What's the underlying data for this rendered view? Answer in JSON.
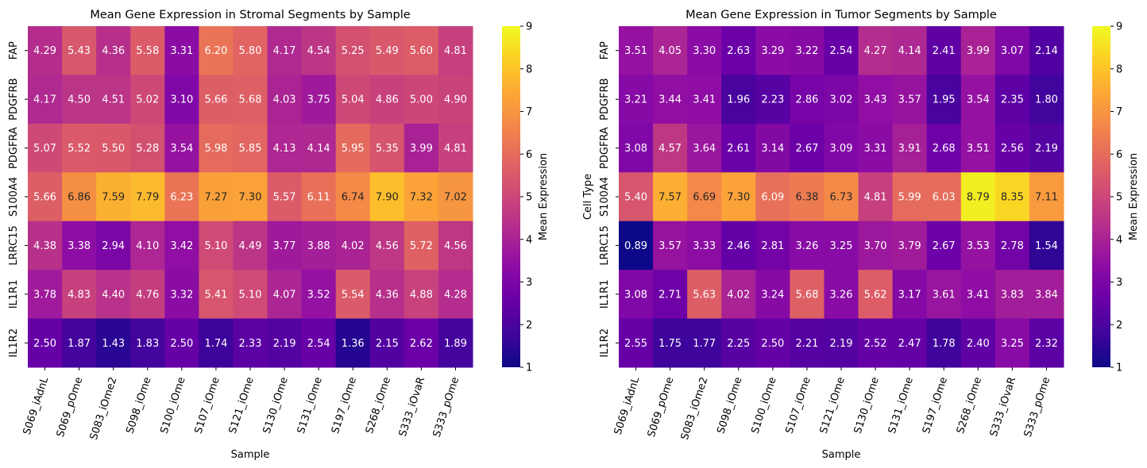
{
  "colormap": {
    "name": "plasma",
    "stops": [
      "#0d0887",
      "#41049d",
      "#6a00a8",
      "#8f0da4",
      "#b12a90",
      "#cc4778",
      "#e16462",
      "#f2844b",
      "#fca636",
      "#fcce25",
      "#f0f921"
    ]
  },
  "chart_data": [
    {
      "type": "heatmap",
      "title": "Mean Gene Expression in Stromal Segments by Sample",
      "xlabel": "Sample",
      "ylabel": "",
      "colorbar_label": "Mean Expression",
      "vmin": 1,
      "vmax": 9,
      "colorbar_ticks": [
        1,
        2,
        3,
        4,
        5,
        6,
        7,
        8,
        9
      ],
      "x": [
        "S069_iAdnL",
        "S069_pOme",
        "S083_iOme2",
        "S098_iOme",
        "S100_iOme",
        "S107_iOme",
        "S121_iOme",
        "S130_iOme",
        "S131_iOme",
        "S197_iOme",
        "S268_iOme",
        "S333_iOvaR",
        "S333_pOme"
      ],
      "y": [
        "FAP",
        "PDGFRB",
        "PDGFRA",
        "S100A4",
        "LRRC15",
        "IL1R1",
        "IL1R2"
      ],
      "values": [
        [
          4.29,
          5.43,
          4.36,
          5.58,
          3.31,
          6.2,
          5.8,
          4.17,
          4.54,
          5.25,
          5.49,
          5.6,
          4.81
        ],
        [
          4.17,
          4.5,
          4.51,
          5.02,
          3.1,
          5.66,
          5.68,
          4.03,
          3.75,
          5.04,
          4.86,
          5.0,
          4.9
        ],
        [
          5.07,
          5.52,
          5.5,
          5.28,
          3.54,
          5.98,
          5.85,
          4.13,
          4.14,
          5.95,
          5.35,
          3.99,
          4.81
        ],
        [
          5.66,
          6.86,
          7.59,
          7.79,
          6.23,
          7.27,
          7.3,
          5.57,
          6.11,
          6.74,
          7.9,
          7.32,
          7.02
        ],
        [
          4.38,
          3.38,
          2.94,
          4.1,
          3.42,
          5.1,
          4.49,
          3.77,
          3.88,
          4.02,
          4.56,
          5.72,
          4.56
        ],
        [
          3.78,
          4.83,
          4.4,
          4.76,
          3.32,
          5.41,
          5.1,
          4.07,
          3.52,
          5.54,
          4.36,
          4.88,
          4.28
        ],
        [
          2.5,
          1.87,
          1.43,
          1.83,
          2.5,
          1.74,
          2.33,
          2.19,
          2.54,
          1.36,
          2.15,
          2.62,
          1.89
        ]
      ]
    },
    {
      "type": "heatmap",
      "title": "Mean Gene Expression in Tumor Segments by Sample",
      "xlabel": "Sample",
      "ylabel": "Cell Type",
      "colorbar_label": "Mean Expression",
      "vmin": 1,
      "vmax": 9,
      "colorbar_ticks": [
        1,
        2,
        3,
        4,
        5,
        6,
        7,
        8,
        9
      ],
      "x": [
        "S069_iAdnL",
        "S069_pOme",
        "S083_iOme2",
        "S098_iOme",
        "S100_iOme",
        "S107_iOme",
        "S121_iOme",
        "S130_iOme",
        "S131_iOme",
        "S197_iOme",
        "S268_iOme",
        "S333_iOvaR",
        "S333_pOme"
      ],
      "y": [
        "FAP",
        "PDGFRB",
        "PDGFRA",
        "S100A4",
        "LRRC15",
        "IL1R1",
        "IL1R2"
      ],
      "values": [
        [
          3.51,
          4.05,
          3.3,
          2.63,
          3.29,
          3.22,
          2.54,
          4.27,
          4.14,
          2.41,
          3.99,
          3.07,
          2.14
        ],
        [
          3.21,
          3.44,
          3.41,
          1.96,
          2.23,
          2.86,
          3.02,
          3.43,
          3.57,
          1.95,
          3.54,
          2.35,
          1.8
        ],
        [
          3.08,
          4.57,
          3.64,
          2.61,
          3.14,
          2.67,
          3.09,
          3.31,
          3.91,
          2.68,
          3.51,
          2.56,
          2.19
        ],
        [
          5.4,
          7.57,
          6.69,
          7.3,
          6.09,
          6.38,
          6.73,
          4.81,
          5.99,
          6.03,
          8.79,
          8.35,
          7.11
        ],
        [
          0.89,
          3.57,
          3.33,
          2.46,
          2.81,
          3.26,
          3.25,
          3.7,
          3.79,
          2.67,
          3.53,
          2.78,
          1.54
        ],
        [
          3.08,
          2.71,
          5.63,
          4.02,
          3.24,
          5.68,
          3.26,
          5.62,
          3.17,
          3.61,
          3.41,
          3.83,
          3.84
        ],
        [
          2.55,
          1.75,
          1.77,
          2.25,
          2.5,
          2.21,
          2.19,
          2.52,
          2.47,
          1.78,
          2.4,
          3.25,
          2.32
        ]
      ]
    }
  ]
}
